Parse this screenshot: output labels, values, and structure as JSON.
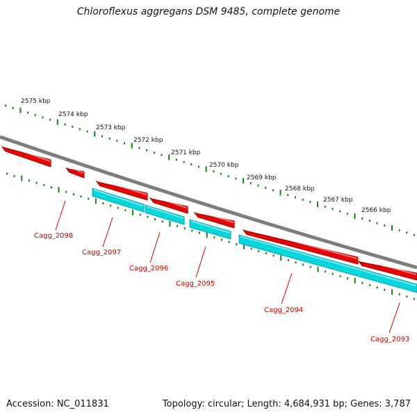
{
  "title": "Chloroflexus aggregans DSM 9485, complete genome",
  "footer": {
    "accession": "Accession: NC_011831",
    "stats": "Topology: circular; Length: 4,684,931 bp; Genes: 3,787"
  },
  "colors": {
    "backbone": "#7d7d7d",
    "tick": "#1a7d1a",
    "forward_gene": "#ee0000",
    "reverse_gene": "#00d8e0",
    "reverse_gene_dark": "#11a0a8",
    "label": "#cc0000"
  },
  "kbp_labels": [
    "2575 kbp",
    "2574 kbp",
    "2573 kbp",
    "2572 kbp",
    "2571 kbp",
    "2570 kbp",
    "2569 kbp",
    "2568 kbp",
    "2567 kbp",
    "2566 kbp"
  ],
  "genes": [
    {
      "label": "Cagg_2098"
    },
    {
      "label": "Cagg_2097"
    },
    {
      "label": "Cagg_2096"
    },
    {
      "label": "Cagg_2095"
    },
    {
      "label": "Cagg_2094"
    },
    {
      "label": "Cagg_2093"
    }
  ]
}
